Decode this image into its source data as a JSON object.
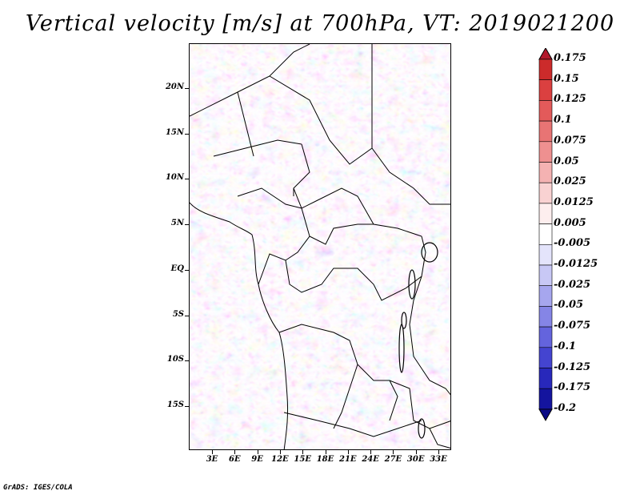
{
  "title": "Vertical velocity [m/s] at 700hPa, VT: 2019021200",
  "lat_labels": [
    "20N",
    "15N",
    "10N",
    "5N",
    "EQ",
    "5S",
    "10S",
    "15S"
  ],
  "lon_labels": [
    "3E",
    "6E",
    "9E",
    "12E",
    "15E",
    "18E",
    "21E",
    "24E",
    "27E",
    "30E",
    "33E"
  ],
  "colorbar": {
    "labels": [
      "0.175",
      "0.15",
      "0.125",
      "0.1",
      "0.075",
      "0.05",
      "0.025",
      "0.0125",
      "0.005",
      "-0.005",
      "-0.0125",
      "-0.025",
      "-0.05",
      "-0.075",
      "-0.1",
      "-0.125",
      "-0.175",
      "-0.2"
    ],
    "colors": [
      "#b2182b",
      "#cc2b2b",
      "#db4040",
      "#e35a5a",
      "#e87474",
      "#ee9090",
      "#f4b2b2",
      "#f9d2d2",
      "#fdeeee",
      "#ffffff",
      "#e4e4fb",
      "#c8c8f5",
      "#a6a6ee",
      "#8585e6",
      "#6464dd",
      "#4444d0",
      "#2828bb",
      "#14149e",
      "#0a0a85"
    ]
  },
  "credit": "GrADS: IGES/COLA"
}
